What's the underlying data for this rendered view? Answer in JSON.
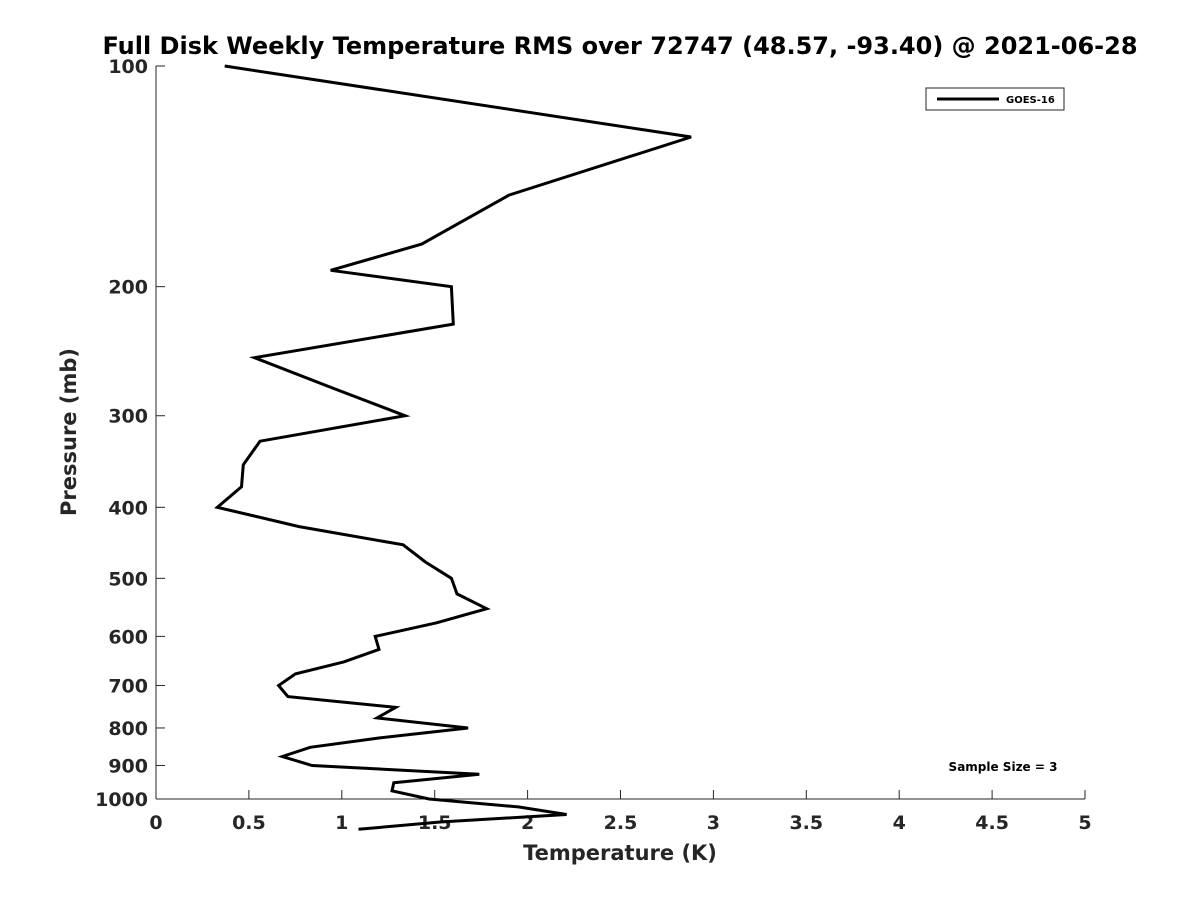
{
  "chart_data": {
    "type": "line",
    "title": "Full Disk Weekly Temperature RMS over 72747 (48.57, -93.40) @ 2021-06-28",
    "xlabel": "Temperature (K)",
    "ylabel": "Pressure (mb)",
    "xlim": [
      0,
      5
    ],
    "ylim": [
      100,
      1000
    ],
    "y_scale": "log",
    "y_reversed": true,
    "x_ticks": [
      "0",
      "0.5",
      "1",
      "1.5",
      "2",
      "2.5",
      "3",
      "3.5",
      "4",
      "4.5",
      "5"
    ],
    "y_ticks": [
      "100",
      "200",
      "300",
      "400",
      "500",
      "600",
      "700",
      "800",
      "900",
      "1000"
    ],
    "grid": false,
    "legend_position": "top-right",
    "annotation": "Sample Size = 3",
    "series": [
      {
        "name": "GOES-16",
        "color": "#000000",
        "x": [
          0.37,
          2.88,
          1.9,
          1.43,
          0.94,
          1.59,
          1.6,
          0.53,
          0.95,
          1.34,
          0.56,
          0.47,
          0.46,
          0.33,
          0.77,
          1.33,
          1.45,
          1.59,
          1.62,
          1.78,
          1.51,
          1.18,
          1.2,
          1.01,
          0.75,
          0.66,
          0.71,
          1.29,
          1.19,
          1.68,
          1.21,
          0.83,
          0.68,
          0.84,
          1.74,
          1.28,
          1.27,
          1.47,
          1.95,
          2.21,
          1.53,
          1.09
        ],
        "y": [
          100,
          125,
          150,
          175,
          190,
          200,
          225,
          250,
          275,
          300,
          325,
          350,
          375,
          400,
          425,
          450,
          475,
          500,
          525,
          550,
          575,
          600,
          625,
          650,
          675,
          700,
          725,
          750,
          775,
          800,
          825,
          850,
          875,
          900,
          925,
          950,
          975,
          1000,
          1025,
          1050,
          1075,
          1100
        ]
      }
    ]
  }
}
